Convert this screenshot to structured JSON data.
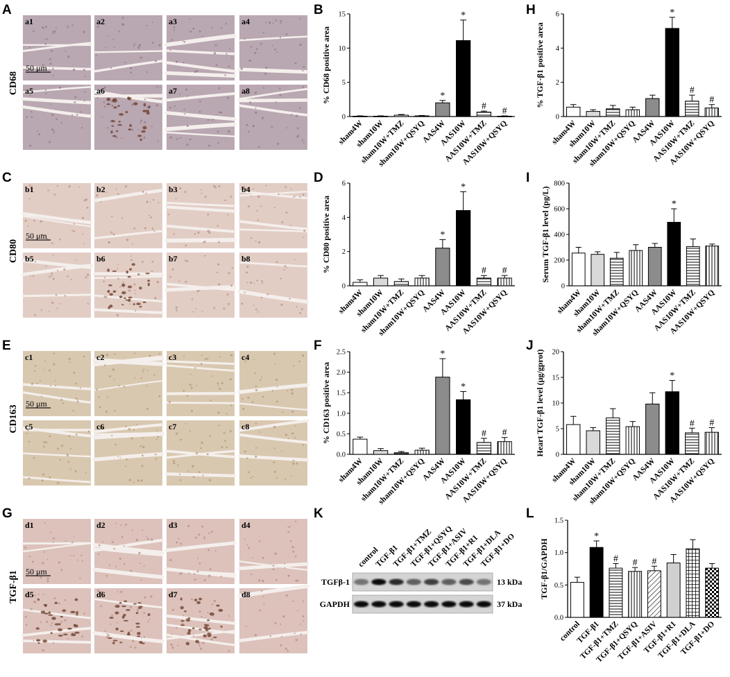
{
  "panel_letters": {
    "A": "A",
    "B": "B",
    "C": "C",
    "D": "D",
    "E": "E",
    "F": "F",
    "G": "G",
    "H": "H",
    "I": "I",
    "J": "J",
    "K": "K",
    "L": "L"
  },
  "scale_bar_label": "50 μm",
  "micrographs": [
    {
      "marker": "CD68",
      "grid": "A",
      "letter": "a",
      "labels": [
        "a1",
        "a2",
        "a3",
        "a4",
        "a5",
        "a6",
        "a7",
        "a8"
      ],
      "tone": "#b9a7b1",
      "dark": "#8e7683",
      "spots": [
        false,
        false,
        false,
        false,
        false,
        true,
        false,
        false
      ]
    },
    {
      "marker": "CD80",
      "grid": "C",
      "letter": "b",
      "labels": [
        "b1",
        "b2",
        "b3",
        "b4",
        "b5",
        "b6",
        "b7",
        "b8"
      ],
      "tone": "#e2cdc5",
      "dark": "#b88f81",
      "spots": [
        false,
        false,
        false,
        false,
        false,
        true,
        false,
        false
      ]
    },
    {
      "marker": "CD163",
      "grid": "E",
      "letter": "c",
      "labels": [
        "c1",
        "c2",
        "c3",
        "c4",
        "c5",
        "c6",
        "c7",
        "c8"
      ],
      "tone": "#d9c8b0",
      "dark": "#b09470",
      "spots": [
        false,
        false,
        false,
        false,
        false,
        false,
        false,
        false
      ]
    },
    {
      "marker": "TGF-β1",
      "grid": "G",
      "letter": "d",
      "labels": [
        "d1",
        "d2",
        "d3",
        "d4",
        "d5",
        "d6",
        "d7",
        "d8"
      ],
      "tone": "#dcc2bb",
      "dark": "#b48a80",
      "spots": [
        false,
        false,
        false,
        false,
        true,
        true,
        true,
        false
      ]
    }
  ],
  "western_blot": {
    "letter": "K",
    "lanes": [
      "control",
      "TGF-β1",
      "TGF-β1+TMZ",
      "TGF-β1+QSYQ",
      "TGF-β1+ASIV",
      "TGF-β1+R1",
      "TGF-β1+DLA",
      "TGF-β1+DO"
    ],
    "rows": [
      {
        "name": "TGFβ-1",
        "size": "13 kDa",
        "intensity": [
          0.45,
          0.95,
          0.8,
          0.55,
          0.7,
          0.55,
          0.65,
          0.45
        ]
      },
      {
        "name": "GAPDH",
        "size": "37 kDa",
        "intensity": [
          0.95,
          0.95,
          0.95,
          0.95,
          0.95,
          0.95,
          0.95,
          0.95
        ]
      }
    ]
  },
  "chart_data": [
    {
      "panel": "B",
      "type": "bar",
      "ylabel": "% CD68 positive area",
      "ylim": [
        0,
        15
      ],
      "yticks": [
        0,
        5,
        10,
        15
      ],
      "categories": [
        "sham4W",
        "sham10W",
        "sham10W+TMZ",
        "sham10W+QSYQ",
        "AAS4W",
        "AAS10W",
        "AAS10W+TMZ",
        "AAS10W+QSYQ"
      ],
      "values": [
        0.05,
        0.05,
        0.2,
        0.1,
        2.0,
        11.1,
        0.65,
        0.05
      ],
      "errors": [
        0.05,
        0.05,
        0.1,
        0.05,
        0.35,
        3.0,
        0.15,
        0.05
      ],
      "annotations": [
        "",
        "",
        "",
        "",
        "*",
        "*",
        "#",
        "#"
      ],
      "fills": [
        "white",
        "#d9d9d9",
        "hl",
        "vl",
        "#8c8c8c",
        "#000000",
        "hl",
        "vl"
      ]
    },
    {
      "panel": "H",
      "type": "bar",
      "ylabel": "% TGF-β1 positive area",
      "ylim": [
        0,
        6
      ],
      "yticks": [
        0,
        2,
        4,
        6
      ],
      "categories": [
        "sham4W",
        "sham10W",
        "sham10W+TMZ",
        "sham10W+QSYQ",
        "AAS4W",
        "AAS10W",
        "AAS10W+TMZ",
        "AAS10W+QSYQ"
      ],
      "values": [
        0.55,
        0.3,
        0.45,
        0.4,
        1.05,
        5.15,
        0.9,
        0.5
      ],
      "errors": [
        0.15,
        0.1,
        0.2,
        0.15,
        0.2,
        0.65,
        0.35,
        0.2
      ],
      "annotations": [
        "",
        "",
        "",
        "",
        "",
        "*",
        "#",
        "#"
      ],
      "fills": [
        "white",
        "#d9d9d9",
        "hl",
        "vl",
        "#8c8c8c",
        "#000000",
        "hl",
        "vl"
      ]
    },
    {
      "panel": "D",
      "type": "bar",
      "ylabel": "% CD80 positive area",
      "ylim": [
        0,
        6
      ],
      "yticks": [
        0,
        2,
        4,
        6
      ],
      "categories": [
        "sham4W",
        "sham10W",
        "sham10W+TMZ",
        "sham10W+QSYQ",
        "AAS4W",
        "AAS10W",
        "AAS10W+TMZ",
        "AAS10W+QSYQ"
      ],
      "values": [
        0.2,
        0.45,
        0.25,
        0.45,
        2.2,
        4.4,
        0.45,
        0.45
      ],
      "errors": [
        0.15,
        0.15,
        0.15,
        0.15,
        0.5,
        1.1,
        0.15,
        0.15
      ],
      "annotations": [
        "",
        "",
        "",
        "",
        "*",
        "*",
        "#",
        "#"
      ],
      "fills": [
        "white",
        "#d9d9d9",
        "hl",
        "vl",
        "#8c8c8c",
        "#000000",
        "hl",
        "vl"
      ]
    },
    {
      "panel": "I",
      "type": "bar",
      "ylabel": "Serum TGF-β1 level (pg/L)",
      "ylim": [
        0,
        800
      ],
      "yticks": [
        0,
        200,
        400,
        600,
        800
      ],
      "categories": [
        "sham4W",
        "sham10W",
        "sham10W+TMZ",
        "sham10W+QSYQ",
        "AAS4W",
        "AAS10W",
        "AAS10W+TMZ",
        "AAS10W+QSYQ"
      ],
      "values": [
        255,
        245,
        215,
        275,
        300,
        495,
        305,
        310
      ],
      "errors": [
        45,
        20,
        45,
        45,
        30,
        105,
        60,
        15
      ],
      "annotations": [
        "",
        "",
        "",
        "",
        "",
        "*",
        "",
        ""
      ],
      "fills": [
        "white",
        "#d9d9d9",
        "hl",
        "vl",
        "#8c8c8c",
        "#000000",
        "hl",
        "vl"
      ]
    },
    {
      "panel": "F",
      "type": "bar",
      "ylabel": "% CD163 positive area",
      "ylim": [
        0,
        2.5
      ],
      "yticks": [
        "0.0",
        "0.5",
        "1.0",
        "1.5",
        "2.0",
        "2.5"
      ],
      "categories": [
        "sham4W",
        "sham10W",
        "sham10W+TMZ",
        "sham10W+QSYQ",
        "AAS4W",
        "AAS10W",
        "AAS10W+TMZ",
        "AAS10W+QSYQ"
      ],
      "values": [
        0.37,
        0.09,
        0.04,
        0.1,
        1.88,
        1.33,
        0.29,
        0.31
      ],
      "errors": [
        0.05,
        0.05,
        0.03,
        0.05,
        0.45,
        0.2,
        0.1,
        0.1
      ],
      "annotations": [
        "",
        "",
        "",
        "",
        "*",
        "*",
        "#",
        "#"
      ],
      "fills": [
        "white",
        "#d9d9d9",
        "hl",
        "vl",
        "#8c8c8c",
        "#000000",
        "hl",
        "vl"
      ]
    },
    {
      "panel": "J",
      "type": "bar",
      "ylabel": "Heart TGF-β1 level (μg/gprot)",
      "ylim": [
        0,
        20
      ],
      "yticks": [
        0,
        5,
        10,
        15,
        20
      ],
      "categories": [
        "sham4W",
        "sham10W",
        "sham10W+TMZ",
        "sham10W+QSYQ",
        "AAS4W",
        "AAS10W",
        "AAS10W+TMZ",
        "AAS10W+QSYQ"
      ],
      "values": [
        5.8,
        4.6,
        7.1,
        5.4,
        9.8,
        12.2,
        4.2,
        4.3
      ],
      "errors": [
        1.6,
        0.6,
        1.8,
        1.0,
        2.2,
        2.2,
        0.9,
        0.9
      ],
      "annotations": [
        "",
        "",
        "",
        "",
        "",
        "*",
        "#",
        "#"
      ],
      "fills": [
        "white",
        "#d9d9d9",
        "hl",
        "vl",
        "#8c8c8c",
        "#000000",
        "hl",
        "vl"
      ]
    },
    {
      "panel": "L",
      "type": "bar",
      "ylabel": "TGF-β1/GAPDH",
      "ylim": [
        0,
        1.5
      ],
      "yticks": [
        "0.0",
        "0.5",
        "1.0",
        "1.5"
      ],
      "categories": [
        "control",
        "TGF-β1",
        "TGF-β1+TMZ",
        "TGF-β1+QSYQ",
        "TGF-β1+ASIV",
        "TGF-β1+R1",
        "TGF-β1+DLA",
        "TGF-β1+DO"
      ],
      "values": [
        0.54,
        1.08,
        0.76,
        0.71,
        0.72,
        0.84,
        1.06,
        0.76
      ],
      "errors": [
        0.08,
        0.1,
        0.07,
        0.06,
        0.07,
        0.13,
        0.14,
        0.07
      ],
      "annotations": [
        "",
        "*",
        "#",
        "#",
        "#",
        "",
        "",
        ""
      ],
      "fills": [
        "white",
        "#000000",
        "hl",
        "vl",
        "diag",
        "#d0d0d0",
        "grid",
        "check"
      ]
    }
  ]
}
